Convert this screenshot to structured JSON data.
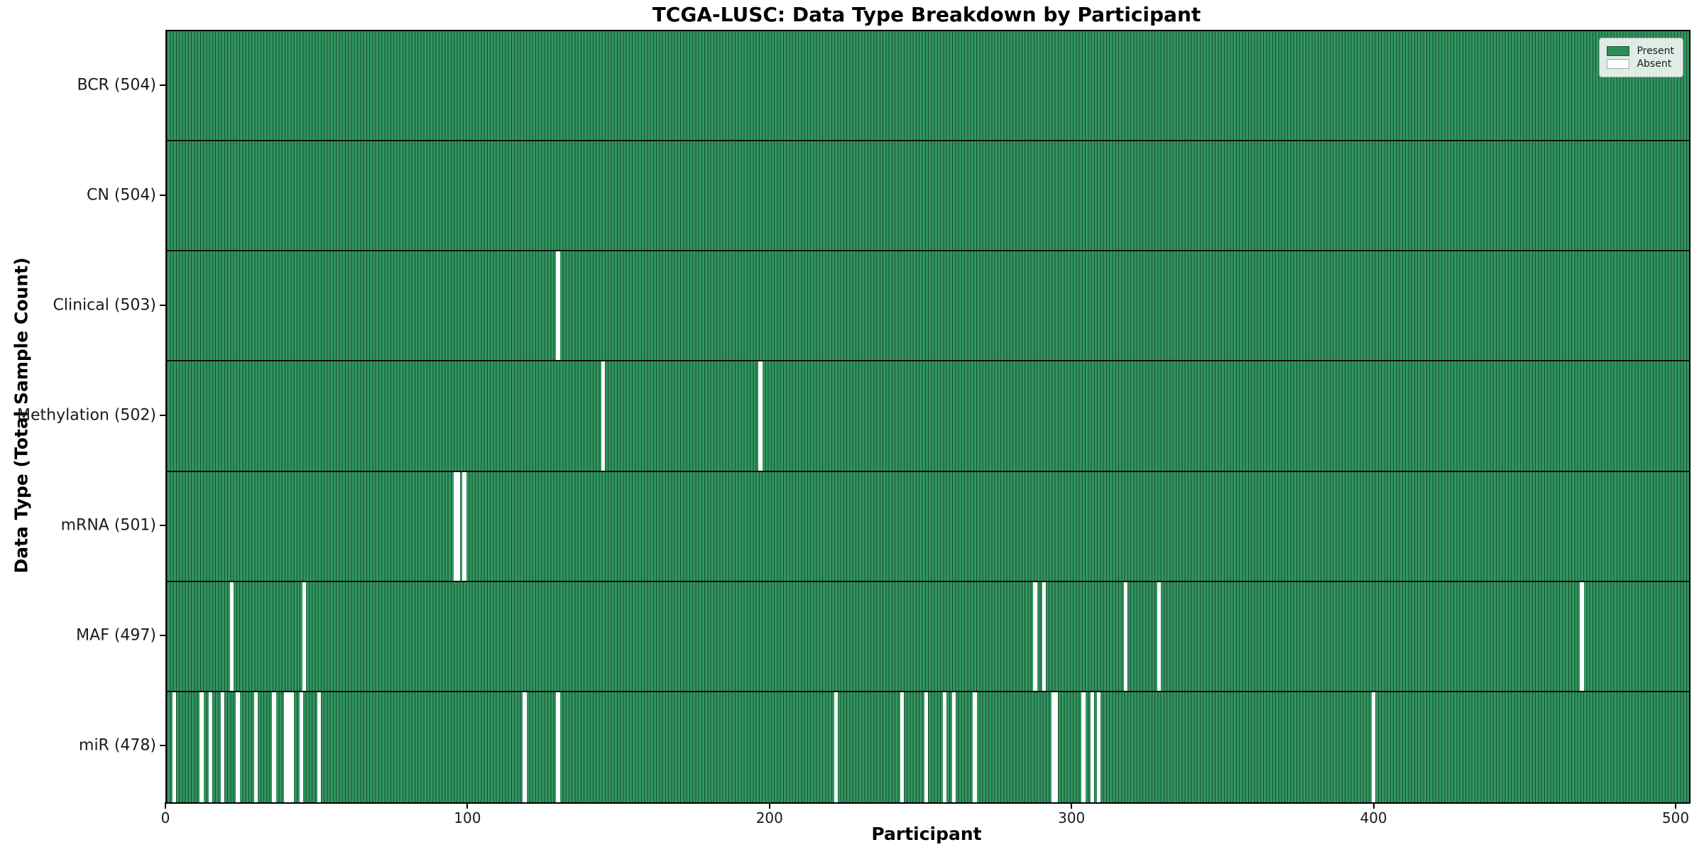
{
  "chart_data": {
    "type": "heatmap",
    "title": "TCGA-LUSC: Data Type Breakdown by Participant",
    "xlabel": "Participant",
    "ylabel": "Data Type (Total Sample Count)",
    "xlim": [
      0,
      504
    ],
    "x_ticks": [
      0,
      100,
      200,
      300,
      400,
      500
    ],
    "grid": false,
    "legend_position": "upper right",
    "legend": [
      {
        "label": "Present",
        "color": "#2e8b57"
      },
      {
        "label": "Absent",
        "color": "#ffffff"
      }
    ],
    "colors": {
      "present_fill": "#2e8b57",
      "bar_edge": "#1b4c32",
      "absent_fill": "#ffffff",
      "row_separator": "#0d0d0d",
      "frame": "#000000"
    },
    "rows": [
      {
        "name": "BCR",
        "total": 504,
        "label": "BCR (504)",
        "absent": []
      },
      {
        "name": "CN",
        "total": 504,
        "label": "CN (504)",
        "absent": []
      },
      {
        "name": "Clinical",
        "total": 503,
        "label": "Clinical (503)",
        "absent": [
          129
        ]
      },
      {
        "name": "Methylation",
        "total": 502,
        "label": "Methylation (502)",
        "absent": [
          144,
          196
        ]
      },
      {
        "name": "mRNA",
        "total": 501,
        "label": "mRNA (501)",
        "absent": [
          95,
          96,
          98
        ]
      },
      {
        "name": "MAF",
        "total": 497,
        "label": "MAF (497)",
        "absent": [
          21,
          45,
          287,
          290,
          317,
          328,
          468
        ]
      },
      {
        "name": "miR",
        "total": 478,
        "label": "miR (478)",
        "absent": [
          2,
          11,
          14,
          18,
          23,
          29,
          35,
          39,
          40,
          41,
          44,
          50,
          118,
          129,
          221,
          243,
          251,
          257,
          260,
          267,
          293,
          294,
          303,
          306,
          308,
          399
        ]
      }
    ]
  }
}
